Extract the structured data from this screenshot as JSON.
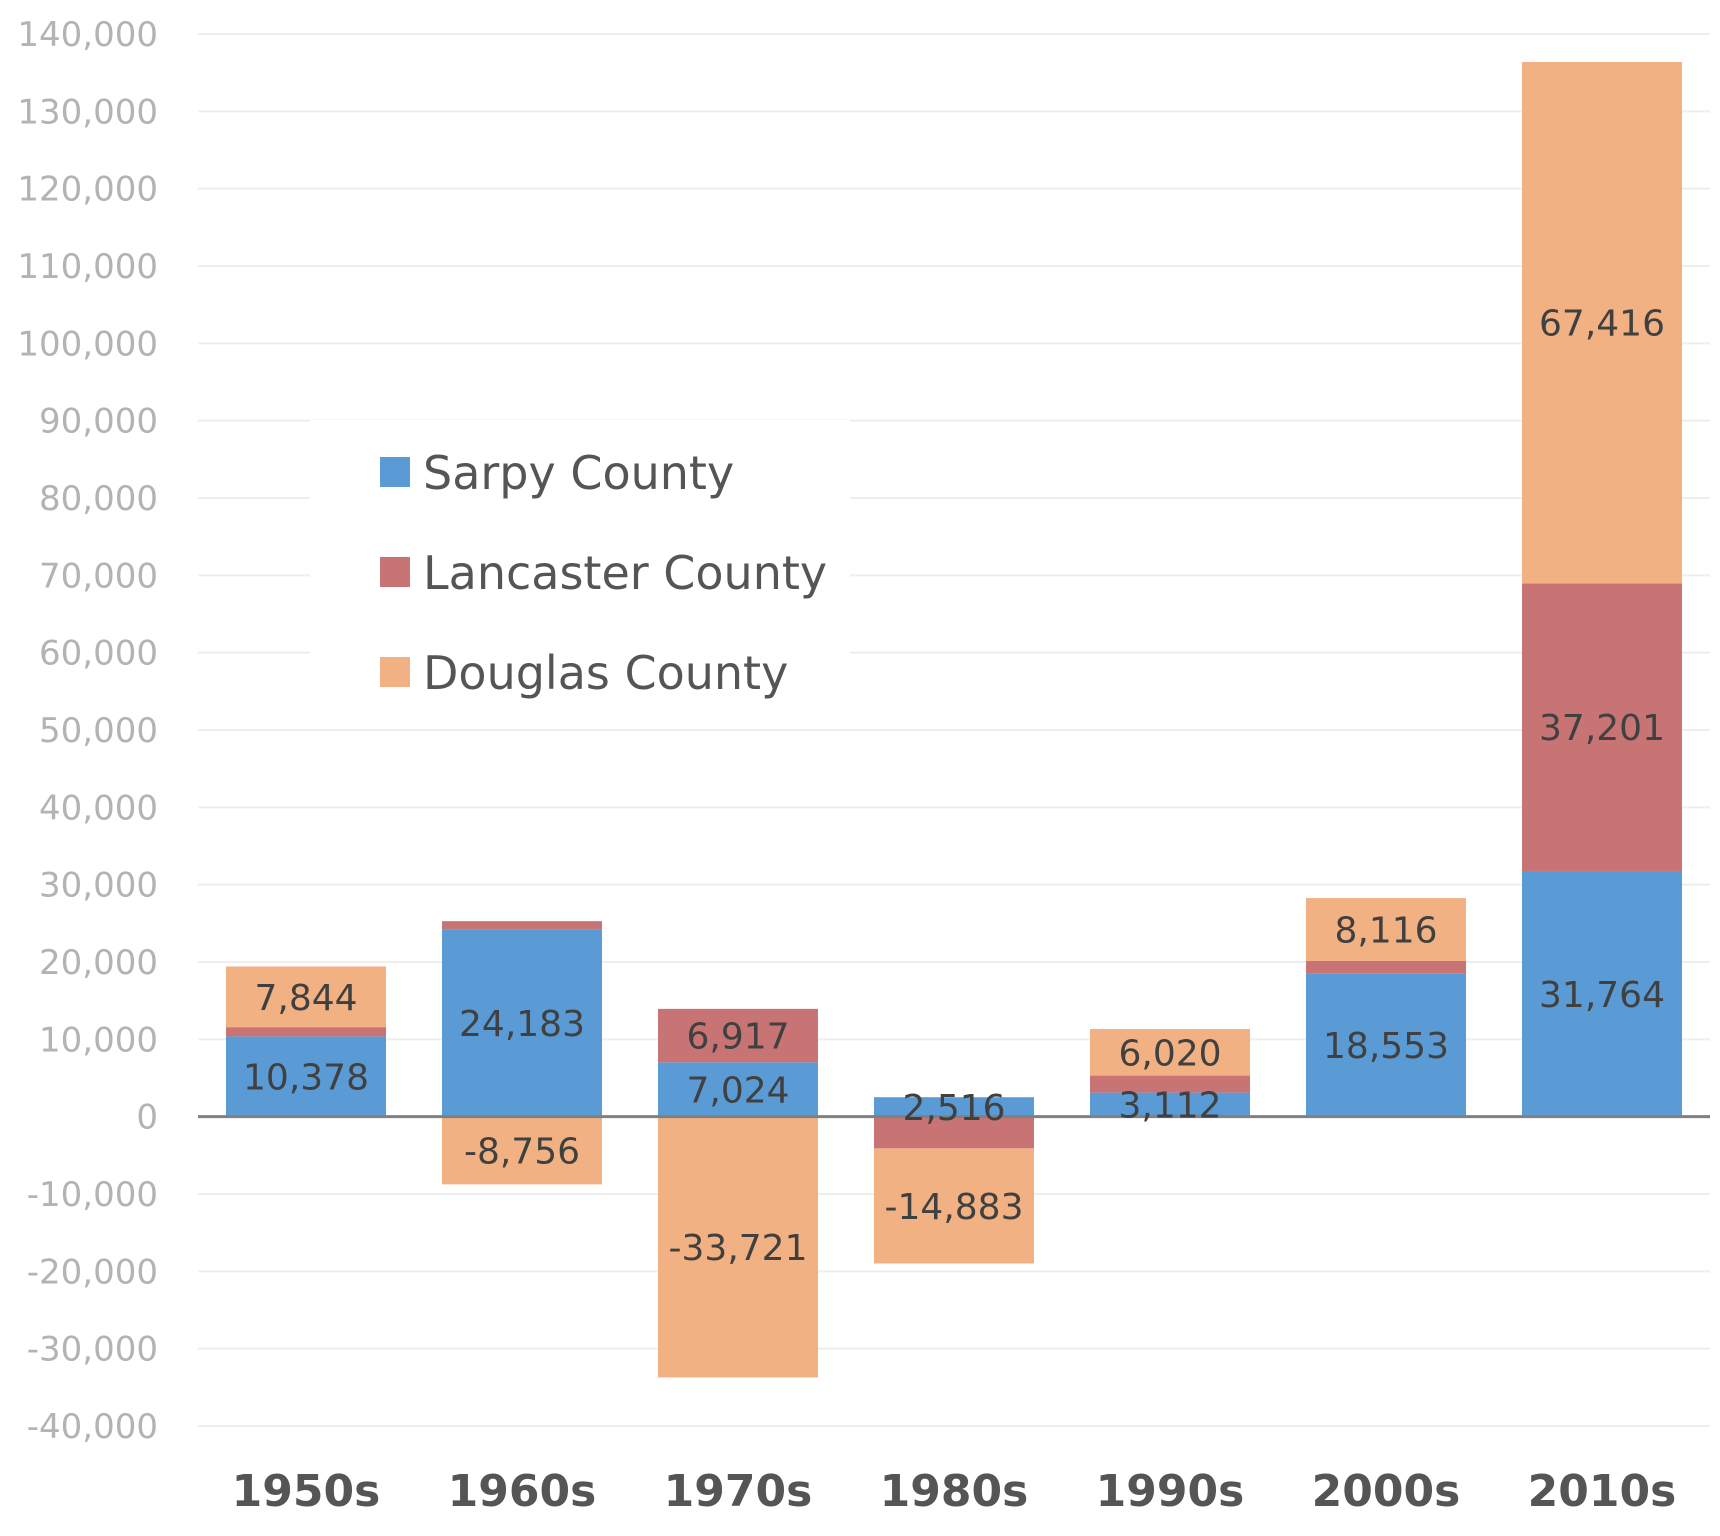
{
  "chart_data": {
    "type": "bar",
    "stacked": true,
    "title": "",
    "xlabel": "",
    "ylabel": "",
    "ylim": [
      -40000,
      140000
    ],
    "ytick_step": 10000,
    "grid": true,
    "legend_position": "upper-left",
    "categories": [
      "1950s",
      "1960s",
      "1970s",
      "1980s",
      "1990s",
      "2000s",
      "2010s"
    ],
    "series": [
      {
        "name": "Sarpy County",
        "color": "#5b9bd5",
        "values": [
          10378,
          24183,
          7024,
          2516,
          3112,
          18553,
          31764
        ],
        "labels": [
          "10,378",
          "24,183",
          "7,024",
          "2,516",
          "3,112",
          "18,553",
          "31,764"
        ]
      },
      {
        "name": "Lancaster County",
        "color": "#c97474",
        "values": [
          1200,
          1100,
          6917,
          -4100,
          2200,
          1600,
          37201
        ],
        "labels": [
          "",
          "",
          "6,917",
          "",
          "",
          "",
          "37,201"
        ]
      },
      {
        "name": "Douglas County",
        "color": "#f2b183",
        "values": [
          7844,
          -8756,
          -33721,
          -14883,
          6020,
          8116,
          67416
        ],
        "labels": [
          "7,844",
          "-8,756",
          "-33,721",
          "-14,883",
          "6,020",
          "8,116",
          "67,416"
        ]
      }
    ],
    "ytick_labels": [
      "140,000",
      "130,000",
      "120,000",
      "110,000",
      "100,000",
      "90,000",
      "80,000",
      "70,000",
      "60,000",
      "50,000",
      "40,000",
      "30,000",
      "20,000",
      "10,000",
      "0",
      "-10,000",
      "-20,000",
      "-30,000",
      "-40,000"
    ],
    "colors": {
      "grid": "#eeeeee",
      "zero_line": "#808080"
    }
  }
}
